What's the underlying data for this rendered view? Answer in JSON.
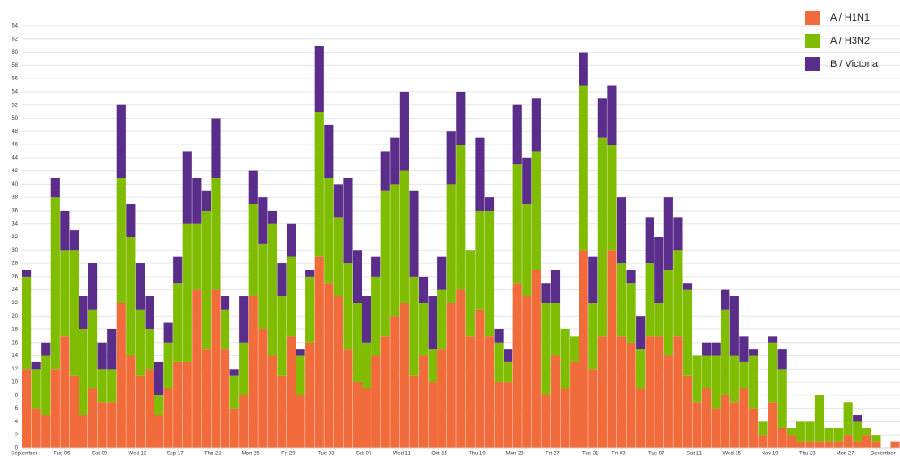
{
  "chart_data": {
    "type": "stacked_bar",
    "categories": [
      "September",
      null,
      null,
      null,
      "Tue 05",
      null,
      null,
      null,
      "Sat 09",
      null,
      null,
      null,
      "Wed 13",
      null,
      null,
      null,
      "Sep 17",
      null,
      null,
      null,
      "Thu 21",
      null,
      null,
      null,
      "Mon 25",
      null,
      null,
      null,
      "Fri 29",
      null,
      null,
      null,
      "Tue 03",
      null,
      null,
      null,
      "Sat 07",
      null,
      null,
      null,
      "Wed 11",
      null,
      null,
      null,
      "Oct 15",
      null,
      null,
      null,
      "Thu 19",
      null,
      null,
      null,
      "Mon 23",
      null,
      null,
      null,
      "Fri 27",
      null,
      null,
      null,
      "Tue 31",
      null,
      null,
      "Fri 03",
      null,
      null,
      null,
      "Tue 07",
      null,
      null,
      null,
      "Sat 11",
      null,
      null,
      null,
      "Wed 15",
      null,
      null,
      null,
      "Nov 19",
      null,
      null,
      null,
      "Thu 23",
      null,
      null,
      null,
      "Mon 27",
      null,
      null,
      null,
      "December",
      null
    ],
    "series": [
      {
        "name": "A / H1N1",
        "color": "#f26b3a",
        "values": [
          12,
          6,
          5,
          12,
          17,
          11,
          5,
          9,
          7,
          7,
          22,
          14,
          11,
          12,
          5,
          9,
          13,
          13,
          24,
          15,
          24,
          15,
          6,
          8,
          23,
          18,
          14,
          11,
          17,
          8,
          16,
          29,
          25,
          23,
          15,
          10,
          9,
          14,
          17,
          20,
          22,
          11,
          14,
          10,
          15,
          22,
          24,
          17,
          21,
          17,
          10,
          10,
          25,
          23,
          27,
          8,
          14,
          9,
          13,
          30,
          12,
          17,
          30,
          17,
          16,
          9,
          17,
          17,
          14,
          17,
          11,
          7,
          9,
          6,
          8,
          7,
          9,
          6,
          2,
          7,
          3,
          2,
          1,
          1,
          1,
          1,
          1,
          2,
          1,
          2,
          1,
          0,
          1
        ]
      },
      {
        "name": "A / H3N2",
        "color": "#80bc00",
        "values": [
          14,
          6,
          9,
          26,
          13,
          19,
          13,
          12,
          5,
          5,
          19,
          18,
          10,
          6,
          3,
          7,
          12,
          21,
          10,
          21,
          17,
          6,
          5,
          8,
          14,
          13,
          20,
          12,
          12,
          6,
          10,
          22,
          16,
          12,
          13,
          12,
          7,
          12,
          22,
          20,
          20,
          15,
          8,
          5,
          9,
          18,
          22,
          13,
          15,
          19,
          6,
          3,
          18,
          14,
          18,
          14,
          8,
          9,
          4,
          25,
          10,
          30,
          16,
          11,
          9,
          6,
          11,
          5,
          13,
          13,
          13,
          7,
          5,
          8,
          13,
          7,
          4,
          8,
          2,
          9,
          9,
          1,
          3,
          3,
          7,
          2,
          2,
          5,
          3,
          1,
          1,
          0,
          0
        ]
      },
      {
        "name": "B / Victoria",
        "color": "#5b2d8a",
        "values": [
          1,
          1,
          2,
          3,
          6,
          3,
          5,
          7,
          4,
          6,
          11,
          5,
          7,
          5,
          5,
          3,
          4,
          11,
          7,
          3,
          9,
          2,
          1,
          7,
          5,
          7,
          2,
          5,
          5,
          1,
          1,
          10,
          8,
          5,
          13,
          8,
          7,
          3,
          6,
          7,
          12,
          13,
          4,
          8,
          5,
          8,
          8,
          0,
          11,
          2,
          2,
          2,
          9,
          7,
          8,
          3,
          5,
          0,
          0,
          5,
          7,
          6,
          9,
          10,
          2,
          5,
          7,
          10,
          11,
          5,
          1,
          0,
          2,
          2,
          3,
          9,
          4,
          1,
          0,
          1,
          3,
          0,
          0,
          0,
          0,
          0,
          0,
          0,
          1,
          0,
          0,
          0,
          0
        ]
      }
    ],
    "ylim": [
      0,
      64
    ],
    "yticks": [
      0,
      2,
      4,
      6,
      8,
      10,
      12,
      14,
      16,
      18,
      20,
      22,
      24,
      26,
      28,
      30,
      32,
      34,
      36,
      38,
      40,
      42,
      44,
      46,
      48,
      50,
      52,
      54,
      56,
      58,
      60,
      62,
      64
    ],
    "grid": true,
    "legend": "top-right"
  }
}
